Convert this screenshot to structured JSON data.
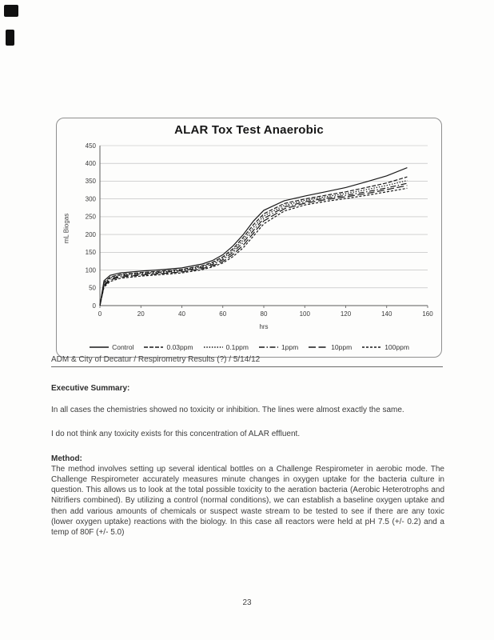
{
  "chart_data": {
    "type": "line",
    "title": "ALAR Tox Test Anaerobic",
    "xlabel": "hrs",
    "ylabel": "mL Biogas",
    "xlim": [
      0,
      160
    ],
    "ylim": [
      0,
      450
    ],
    "x_ticks": [
      0,
      20,
      40,
      60,
      80,
      100,
      120,
      140,
      160
    ],
    "y_ticks": [
      0,
      50,
      100,
      150,
      200,
      250,
      300,
      350,
      400,
      450
    ],
    "grid": true,
    "legend_position": "bottom",
    "line_color": "#1a1a1a",
    "x": [
      0,
      2,
      5,
      10,
      20,
      30,
      40,
      50,
      55,
      60,
      65,
      70,
      75,
      80,
      90,
      100,
      110,
      120,
      130,
      140,
      150
    ],
    "series": [
      {
        "name": "Control",
        "dash": "solid",
        "values": [
          0,
          70,
          85,
          92,
          97,
          101,
          106,
          117,
          127,
          143,
          168,
          200,
          238,
          268,
          295,
          308,
          320,
          332,
          348,
          365,
          388
        ]
      },
      {
        "name": "0.03ppm",
        "dash": "dash",
        "values": [
          0,
          65,
          80,
          88,
          93,
          97,
          102,
          112,
          122,
          137,
          160,
          192,
          228,
          258,
          287,
          300,
          310,
          320,
          332,
          345,
          362
        ]
      },
      {
        "name": "0.1ppm",
        "dash": "dot",
        "values": [
          0,
          62,
          78,
          86,
          91,
          95,
          100,
          110,
          119,
          133,
          155,
          185,
          220,
          252,
          282,
          296,
          306,
          315,
          326,
          338,
          352
        ]
      },
      {
        "name": "1ppm",
        "dash": "dashdot",
        "values": [
          0,
          58,
          75,
          83,
          89,
          93,
          98,
          107,
          116,
          129,
          150,
          178,
          212,
          245,
          277,
          292,
          302,
          310,
          320,
          331,
          344
        ]
      },
      {
        "name": "10ppm",
        "dash": "longdash",
        "values": [
          0,
          55,
          72,
          80,
          86,
          90,
          95,
          104,
          112,
          124,
          144,
          170,
          204,
          238,
          272,
          288,
          298,
          306,
          315,
          326,
          338
        ]
      },
      {
        "name": "100ppm",
        "dash": "shortdash",
        "values": [
          0,
          52,
          68,
          77,
          83,
          87,
          92,
          101,
          109,
          120,
          138,
          163,
          196,
          230,
          266,
          283,
          293,
          301,
          310,
          320,
          330
        ]
      }
    ]
  },
  "document": {
    "reference_line": "ADM & City of Decatur / Respirometry Results (?) / 5/14/12",
    "executive_summary": {
      "heading": "Executive Summary:",
      "paragraph_1": "In all cases the chemistries showed no toxicity or inhibition. The lines were almost exactly the same.",
      "paragraph_2": "I do not think any toxicity exists for this concentration of ALAR effluent."
    },
    "method": {
      "heading": "Method:",
      "paragraph": "The method involves setting up several identical bottles on a Challenge Respirometer in aerobic mode. The Challenge Respirometer accurately measures minute changes in oxygen uptake for the bacteria culture in question. This allows us to look at the total possible toxicity to the aeration bacteria (Aerobic Heterotrophs and Nitrifiers combined). By utilizing a control (normal conditions), we can establish a baseline oxygen uptake and then add various amounts of chemicals or suspect waste stream to be tested to see if there are any toxic (lower oxygen uptake) reactions with the biology. In this case all reactors were held at pH 7.5 (+/- 0.2) and a temp of 80F (+/- 5.0)"
    },
    "page_number": "23"
  }
}
